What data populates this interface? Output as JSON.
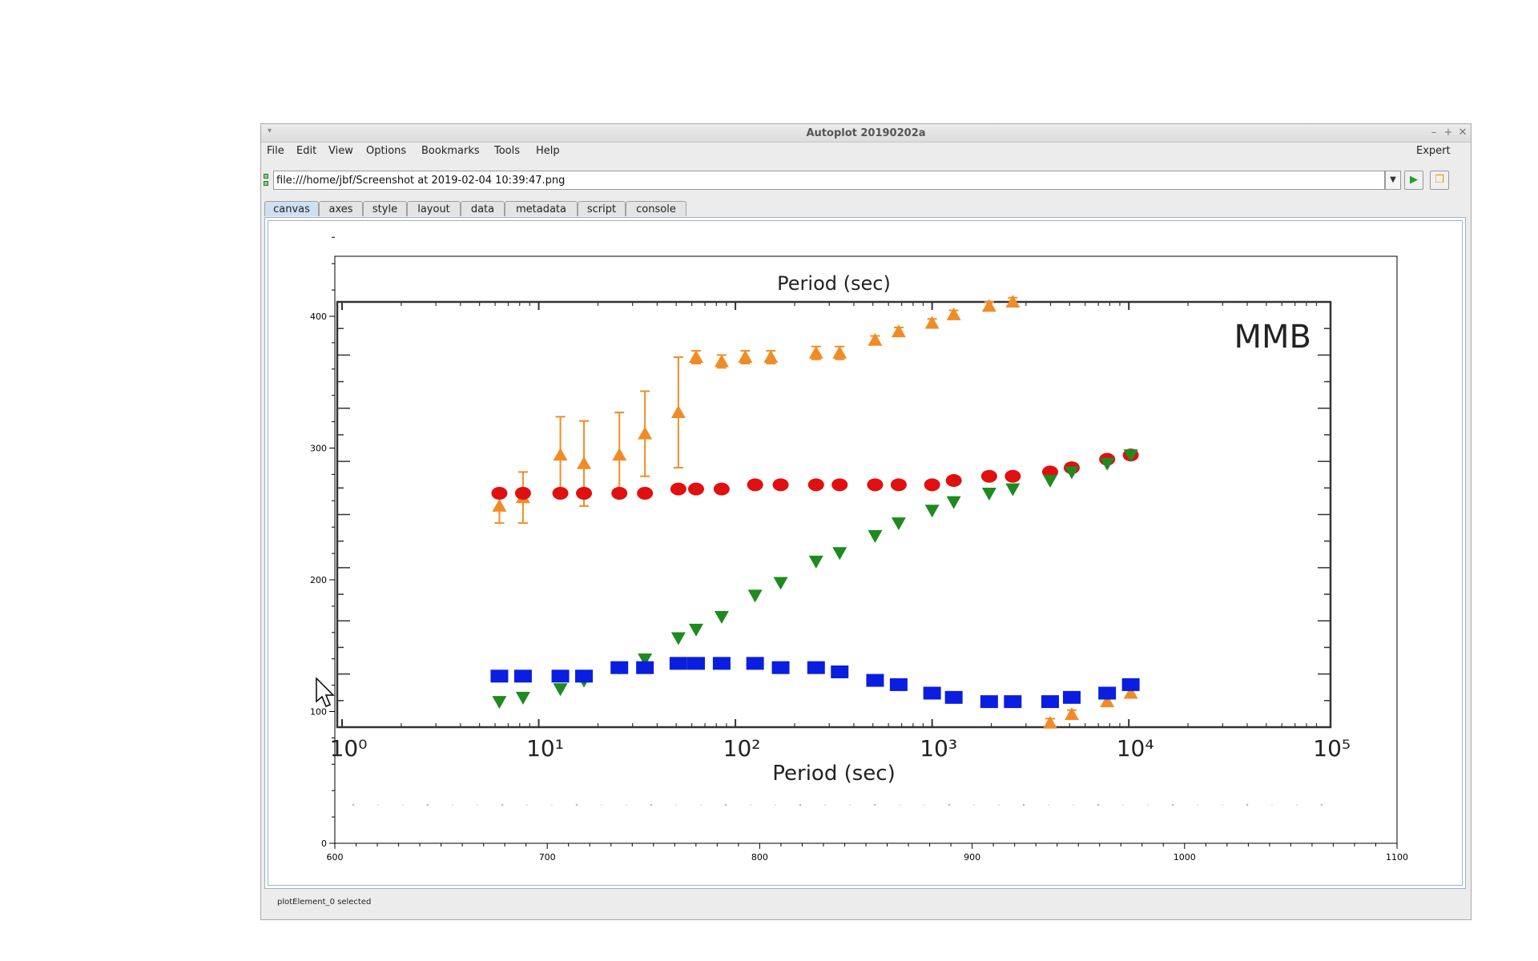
{
  "window": {
    "title": "Autoplot 20190202a",
    "controls": {
      "minimize": "–",
      "maximize": "+",
      "close": "✕"
    }
  },
  "menu": {
    "items": [
      "File",
      "Edit",
      "View",
      "Options",
      "Bookmarks",
      "Tools",
      "Help"
    ],
    "expert": "Expert"
  },
  "url": {
    "value": "file:///home/jbf/Screenshot at 2019-02-04 10:39:47.png"
  },
  "tabs": [
    "canvas",
    "axes",
    "style",
    "layout",
    "data",
    "metadata",
    "script",
    "console"
  ],
  "active_tab": "canvas",
  "status": "plotElement_0 selected",
  "icons": {
    "go": "play-icon",
    "browse": "folder-icon",
    "dropdown": "chevron-down-icon",
    "status": "status-indicator-icon",
    "cursor": "mouse-pointer-icon"
  },
  "chart_data": {
    "type": "scatter",
    "xlim": [
      600,
      1100
    ],
    "ylim": [
      0,
      400
    ],
    "xticks": [
      600,
      700,
      800,
      900,
      1000,
      1100
    ],
    "yticks": [
      0,
      100,
      200,
      300,
      400
    ],
    "grid": false,
    "embedded_image": {
      "top_title": "Period (sec)",
      "xlabel": "Period (sec)",
      "annotation": "MMB",
      "xticks": [
        "10⁰",
        "10¹",
        "10²",
        "10³",
        "10⁴",
        "10⁵"
      ],
      "colors": {
        "orange": "#f08c28",
        "red": "#e01010",
        "green": "#1f8a1f",
        "blue": "#0a1ee0"
      },
      "series": [
        {
          "color": "orange",
          "marker": "triangle-up",
          "points": [
            [
              0.8,
              0.52,
              0.04
            ],
            [
              0.92,
              0.54,
              0.06
            ],
            [
              1.11,
              0.64,
              0.09
            ],
            [
              1.23,
              0.62,
              0.1
            ],
            [
              1.41,
              0.64,
              0.1
            ],
            [
              1.54,
              0.69,
              0.1
            ],
            [
              1.71,
              0.74,
              0.13
            ],
            [
              1.8,
              0.87,
              0.015
            ],
            [
              1.93,
              0.86,
              0.015
            ],
            [
              2.05,
              0.87,
              0.015
            ],
            [
              2.18,
              0.87,
              0.015
            ],
            [
              2.41,
              0.88,
              0.015
            ],
            [
              2.53,
              0.88,
              0.015
            ],
            [
              2.71,
              0.91,
              0.01
            ],
            [
              2.83,
              0.93,
              0.01
            ],
            [
              3.0,
              0.95,
              0.01
            ],
            [
              3.11,
              0.97,
              0.01
            ],
            [
              3.29,
              0.99,
              0.01
            ],
            [
              3.41,
              1.0,
              0.01
            ],
            [
              3.6,
              0.01,
              0.01
            ],
            [
              3.71,
              0.03,
              0.01
            ],
            [
              3.89,
              0.06,
              0.01
            ],
            [
              4.01,
              0.08,
              0.01
            ]
          ]
        },
        {
          "color": "red",
          "marker": "circle",
          "points": [
            [
              0.8,
              0.55
            ],
            [
              0.92,
              0.55
            ],
            [
              1.11,
              0.55
            ],
            [
              1.23,
              0.55
            ],
            [
              1.41,
              0.55
            ],
            [
              1.54,
              0.55
            ],
            [
              1.71,
              0.56
            ],
            [
              1.8,
              0.56
            ],
            [
              1.93,
              0.56
            ],
            [
              2.1,
              0.57
            ],
            [
              2.23,
              0.57
            ],
            [
              2.41,
              0.57
            ],
            [
              2.53,
              0.57
            ],
            [
              2.71,
              0.57
            ],
            [
              2.83,
              0.57
            ],
            [
              3.0,
              0.57
            ],
            [
              3.11,
              0.58
            ],
            [
              3.29,
              0.59
            ],
            [
              3.41,
              0.59
            ],
            [
              3.6,
              0.6
            ],
            [
              3.71,
              0.61
            ],
            [
              3.89,
              0.63
            ],
            [
              4.01,
              0.64
            ]
          ]
        },
        {
          "color": "green",
          "marker": "triangle-down",
          "points": [
            [
              0.8,
              0.06
            ],
            [
              0.92,
              0.07
            ],
            [
              1.11,
              0.09
            ],
            [
              1.23,
              0.11
            ],
            [
              1.41,
              0.14
            ],
            [
              1.54,
              0.16
            ],
            [
              1.71,
              0.21
            ],
            [
              1.8,
              0.23
            ],
            [
              1.93,
              0.26
            ],
            [
              2.1,
              0.31
            ],
            [
              2.23,
              0.34
            ],
            [
              2.41,
              0.39
            ],
            [
              2.53,
              0.41
            ],
            [
              2.71,
              0.45
            ],
            [
              2.83,
              0.48
            ],
            [
              3.0,
              0.51
            ],
            [
              3.11,
              0.53
            ],
            [
              3.29,
              0.55
            ],
            [
              3.41,
              0.56
            ],
            [
              3.6,
              0.58
            ],
            [
              3.71,
              0.6
            ],
            [
              3.89,
              0.62
            ],
            [
              4.01,
              0.64
            ]
          ]
        },
        {
          "color": "blue",
          "marker": "square",
          "points": [
            [
              0.8,
              0.12
            ],
            [
              0.92,
              0.12
            ],
            [
              1.11,
              0.12
            ],
            [
              1.23,
              0.12
            ],
            [
              1.41,
              0.14
            ],
            [
              1.54,
              0.14
            ],
            [
              1.71,
              0.15
            ],
            [
              1.8,
              0.15
            ],
            [
              1.93,
              0.15
            ],
            [
              2.1,
              0.15
            ],
            [
              2.23,
              0.14
            ],
            [
              2.41,
              0.14
            ],
            [
              2.53,
              0.13
            ],
            [
              2.71,
              0.11
            ],
            [
              2.83,
              0.1
            ],
            [
              3.0,
              0.08
            ],
            [
              3.11,
              0.07
            ],
            [
              3.29,
              0.06
            ],
            [
              3.41,
              0.06
            ],
            [
              3.6,
              0.06
            ],
            [
              3.71,
              0.07
            ],
            [
              3.89,
              0.08
            ],
            [
              4.01,
              0.1
            ]
          ]
        }
      ]
    }
  }
}
